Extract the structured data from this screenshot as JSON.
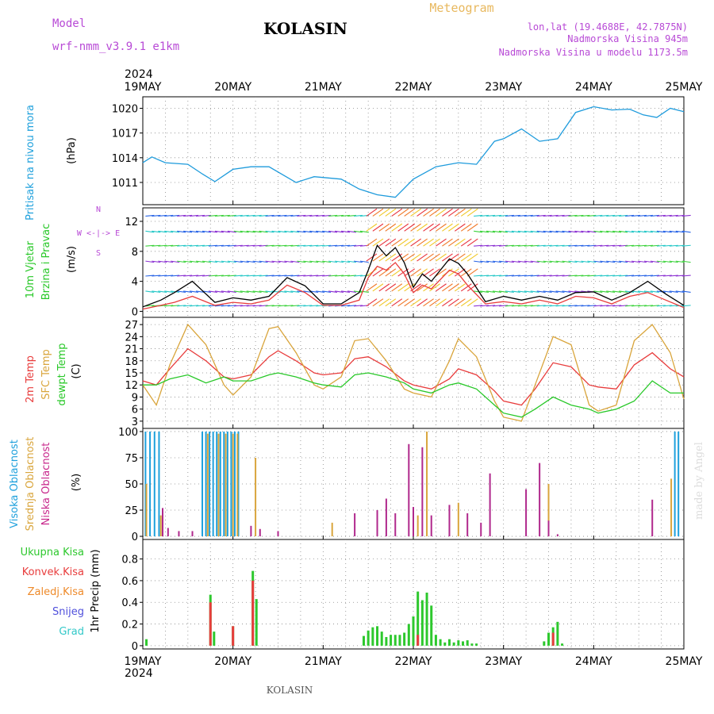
{
  "header": {
    "model_label": "Model",
    "model_name": "wrf-nmm_v3.9.1 e1km",
    "station": "KOLASIN",
    "product": "Meteogram",
    "location": "lon,lat (19.4688E, 42.7875N)",
    "elevation": "Nadmorska Visina 945m",
    "model_elevation": "Nadmorska Visina u modelu 1173.5m",
    "year": "2024",
    "footer_station": "KOLASIN",
    "credit": "made by Angel"
  },
  "colors": {
    "pressure": "#1e9bdc",
    "temp2m": "#e83c3c",
    "sfc_temp": "#d9a53c",
    "dewpt": "#28c828",
    "high_cloud": "#1ea0dc",
    "mid_cloud": "#d9a53c",
    "low_cloud": "#b0288c",
    "total_precip": "#2dc82d",
    "conv_precip": "#e83c3c",
    "grid": "#888888"
  },
  "chart_data": [
    {
      "type": "line",
      "panel": "pressure",
      "ylabel_lines": [
        "Pritisak na nivou mora",
        "(hPa)"
      ],
      "x_dates": [
        "19MAY",
        "20MAY",
        "21MAY",
        "22MAY",
        "23MAY",
        "24MAY",
        "25MAY"
      ],
      "x_unit": "days since 19MAY 00h",
      "ylim": [
        1008.3,
        1021.4
      ],
      "yticks": [
        1011,
        1014,
        1017,
        1020
      ],
      "series": [
        {
          "name": "",
          "color": "pressure",
          "x": [
            0,
            0.1,
            0.25,
            0.5,
            0.65,
            0.8,
            1.0,
            1.2,
            1.4,
            1.7,
            1.9,
            2.2,
            2.4,
            2.6,
            2.8,
            3.0,
            3.25,
            3.5,
            3.7,
            3.9,
            4.0,
            4.2,
            4.4,
            4.6,
            4.8,
            5.0,
            5.2,
            5.4,
            5.55,
            5.7,
            5.85,
            6.0
          ],
          "y": [
            1013.4,
            1014.1,
            1013.4,
            1013.2,
            1012.1,
            1011.1,
            1012.6,
            1012.9,
            1012.9,
            1011.0,
            1011.7,
            1011.4,
            1010.2,
            1009.5,
            1009.2,
            1011.4,
            1012.9,
            1013.4,
            1013.2,
            1016.0,
            1016.3,
            1017.5,
            1016.0,
            1016.3,
            1019.5,
            1020.2,
            1019.8,
            1019.9,
            1019.2,
            1018.9,
            1020.0,
            1019.6
          ]
        }
      ]
    },
    {
      "type": "line",
      "panel": "wind",
      "ylabel_lines": [
        "10m Vjetar",
        "Brzina i Pravac",
        "(m/s)"
      ],
      "compass_label": "W <-|-> E",
      "compass_north": "N",
      "compass_south": "S",
      "ylim": [
        -0.8,
        13.8
      ],
      "yticks": [
        0,
        4,
        8,
        12
      ],
      "series": [
        {
          "name": "",
          "color": "#000000",
          "x": [
            0,
            0.2,
            0.35,
            0.55,
            0.8,
            1.0,
            1.2,
            1.4,
            1.6,
            1.8,
            2.0,
            2.2,
            2.4,
            2.5,
            2.6,
            2.7,
            2.8,
            2.9,
            3.0,
            3.1,
            3.2,
            3.4,
            3.5,
            3.6,
            3.8,
            4.0,
            4.2,
            4.4,
            4.6,
            4.8,
            5.0,
            5.2,
            5.4,
            5.6,
            5.8,
            6.0
          ],
          "y": [
            0.6,
            1.5,
            2.5,
            4.0,
            1.2,
            1.8,
            1.5,
            2.0,
            4.5,
            3.4,
            1.0,
            1.0,
            2.5,
            5.5,
            8.8,
            7.4,
            8.5,
            6.5,
            3.2,
            5.0,
            4.0,
            7.0,
            6.4,
            5.0,
            1.3,
            2.0,
            1.5,
            2.0,
            1.5,
            2.5,
            2.6,
            1.5,
            2.5,
            4.0,
            2.3,
            0.8
          ]
        },
        {
          "name": "",
          "color": "#e83c3c",
          "x": [
            0,
            0.2,
            0.35,
            0.55,
            0.8,
            1.0,
            1.2,
            1.4,
            1.6,
            1.8,
            2.0,
            2.2,
            2.4,
            2.5,
            2.6,
            2.7,
            2.8,
            2.9,
            3.0,
            3.1,
            3.2,
            3.4,
            3.5,
            3.6,
            3.8,
            4.0,
            4.2,
            4.4,
            4.6,
            4.8,
            5.0,
            5.2,
            5.4,
            5.6,
            5.8,
            6.0
          ],
          "y": [
            0.3,
            0.8,
            1.2,
            2.0,
            0.8,
            1.2,
            1.0,
            1.5,
            3.5,
            2.5,
            0.8,
            0.8,
            1.5,
            4.5,
            6.0,
            5.5,
            6.5,
            5.0,
            2.5,
            3.5,
            3.0,
            5.5,
            5.0,
            3.5,
            1.0,
            1.3,
            1.0,
            1.5,
            1.0,
            2.0,
            1.8,
            1.0,
            2.0,
            2.5,
            1.5,
            0.5
          ]
        }
      ]
    },
    {
      "type": "line",
      "panel": "temperature",
      "ylabel_lines": [
        "2m Temp",
        "SFC Temp",
        "dewpt Temp",
        "(C)"
      ],
      "ylim": [
        1.2,
        28.8
      ],
      "yticks": [
        3,
        6,
        9,
        12,
        15,
        18,
        21,
        24,
        27
      ],
      "series": [
        {
          "name": "2m Temp",
          "color": "temp2m",
          "x": [
            0,
            0.15,
            0.3,
            0.5,
            0.7,
            0.9,
            1.0,
            1.2,
            1.4,
            1.5,
            1.7,
            1.9,
            2.0,
            2.2,
            2.35,
            2.5,
            2.7,
            2.9,
            3.0,
            3.2,
            3.4,
            3.5,
            3.7,
            3.9,
            4.0,
            4.2,
            4.35,
            4.55,
            4.75,
            4.95,
            5.05,
            5.25,
            5.45,
            5.65,
            5.85,
            6.0
          ],
          "y": [
            13,
            12,
            16,
            21,
            18,
            14,
            13.5,
            14.5,
            19,
            20.5,
            18,
            15,
            14.5,
            15,
            18.5,
            19,
            16.5,
            13,
            12,
            11,
            13.5,
            16,
            14.5,
            10.5,
            8,
            7,
            11,
            17.5,
            16.5,
            12,
            11.5,
            11,
            17,
            20,
            16,
            14
          ]
        },
        {
          "name": "SFC Temp",
          "color": "sfc_temp",
          "x": [
            0,
            0.15,
            0.3,
            0.5,
            0.7,
            0.9,
            1.0,
            1.2,
            1.4,
            1.5,
            1.7,
            1.9,
            2.0,
            2.2,
            2.35,
            2.5,
            2.7,
            2.9,
            3.0,
            3.2,
            3.4,
            3.5,
            3.7,
            3.9,
            4.0,
            4.2,
            4.35,
            4.55,
            4.75,
            4.95,
            5.05,
            5.25,
            5.45,
            5.65,
            5.85,
            6.0
          ],
          "y": [
            12,
            7,
            17,
            27,
            22,
            12,
            9.5,
            14,
            26,
            26.5,
            20,
            12,
            11,
            14,
            23,
            23.5,
            18,
            11,
            10,
            9,
            18,
            23.5,
            19,
            8,
            4,
            3,
            12,
            24,
            22,
            7,
            5.5,
            7,
            23,
            27,
            20,
            8.5
          ]
        },
        {
          "name": "dewpt Temp",
          "color": "dewpt",
          "x": [
            0,
            0.15,
            0.3,
            0.5,
            0.7,
            0.9,
            1.0,
            1.2,
            1.4,
            1.5,
            1.7,
            1.9,
            2.0,
            2.2,
            2.35,
            2.5,
            2.7,
            2.9,
            3.0,
            3.2,
            3.4,
            3.5,
            3.7,
            3.9,
            4.0,
            4.2,
            4.35,
            4.55,
            4.75,
            4.95,
            5.05,
            5.25,
            5.45,
            5.65,
            5.85,
            6.0
          ],
          "y": [
            12,
            12,
            13.5,
            14.5,
            12.5,
            14,
            13,
            13,
            14.5,
            15,
            14,
            12.5,
            12,
            11.5,
            14.5,
            15,
            14,
            12.5,
            11,
            10,
            12,
            12.5,
            11,
            7,
            5,
            4,
            6,
            9,
            7,
            6,
            5,
            6,
            8,
            13,
            10,
            10
          ]
        }
      ]
    },
    {
      "type": "bar",
      "panel": "cloud",
      "ylabel_lines": [
        "Visoka Oblacnost",
        "Srednja Oblacnost",
        "Niska Oblacnost",
        "(%)"
      ],
      "ylim": [
        -3,
        103
      ],
      "yticks": [
        0,
        25,
        50,
        75,
        100
      ],
      "series": [
        {
          "name": "Visoka Oblacnost",
          "color": "high_cloud",
          "x": [
            0.03,
            0.08,
            0.13,
            0.18,
            0.66,
            0.7,
            0.74,
            0.78,
            0.82,
            0.86,
            0.9,
            0.94,
            0.98,
            1.02,
            1.06,
            5.9,
            5.94
          ],
          "values": [
            100,
            100,
            100,
            100,
            100,
            100,
            100,
            100,
            100,
            100,
            100,
            100,
            100,
            100,
            100,
            100,
            100
          ]
        },
        {
          "name": "Srednja Oblacnost",
          "color": "mid_cloud",
          "x": [
            0.04,
            0.2,
            0.72,
            0.84,
            0.92,
            1.0,
            1.05,
            1.25,
            2.1,
            3.05,
            3.15,
            3.5,
            4.5,
            5.86
          ],
          "values": [
            50,
            20,
            98,
            98,
            98,
            98,
            98,
            75,
            13,
            20,
            100,
            32,
            50,
            55
          ]
        },
        {
          "name": "Niska Oblacnost",
          "color": "low_cloud",
          "x": [
            0.22,
            0.28,
            0.4,
            0.55,
            1.2,
            1.3,
            1.5,
            2.35,
            2.6,
            2.7,
            2.8,
            2.95,
            3.0,
            3.1,
            3.2,
            3.4,
            3.6,
            3.75,
            3.85,
            4.25,
            4.4,
            4.5,
            4.6,
            5.65
          ],
          "values": [
            27,
            8,
            5,
            5,
            10,
            7,
            5,
            22,
            25,
            36,
            22,
            88,
            28,
            85,
            20,
            30,
            22,
            13,
            60,
            45,
            70,
            15,
            2,
            35
          ]
        }
      ]
    },
    {
      "type": "bar",
      "panel": "precip",
      "ylabel_lines": [
        "1hr Precip (mm)"
      ],
      "legend": [
        "Ukupna Kisa",
        "Konvek.Kisa",
        "Zaledj.Kisa",
        "Snijeg",
        "Grad"
      ],
      "legend_colors": [
        "#2dc82d",
        "#e83c3c",
        "#ee8a2a",
        "#5050dc",
        "#32c8c8"
      ],
      "ylim": [
        -0.03,
        0.98
      ],
      "yticks": [
        0,
        0.2,
        0.4,
        0.6,
        0.8
      ],
      "series": [
        {
          "name": "Ukupna Kisa",
          "color": "total_precip",
          "x": [
            0.04,
            0.75,
            0.79,
            1.0,
            1.22,
            1.26,
            2.45,
            2.5,
            2.55,
            2.6,
            2.65,
            2.7,
            2.75,
            2.8,
            2.85,
            2.9,
            2.95,
            3.0,
            3.05,
            3.1,
            3.15,
            3.2,
            3.25,
            3.3,
            3.35,
            3.4,
            3.45,
            3.5,
            3.55,
            3.6,
            3.65,
            3.7,
            4.45,
            4.5,
            4.55,
            4.6,
            4.65
          ],
          "values": [
            0.06,
            0.47,
            0.13,
            0.18,
            0.69,
            0.43,
            0.09,
            0.14,
            0.17,
            0.18,
            0.13,
            0.08,
            0.1,
            0.1,
            0.1,
            0.12,
            0.2,
            0.27,
            0.5,
            0.42,
            0.49,
            0.37,
            0.1,
            0.06,
            0.03,
            0.06,
            0.03,
            0.05,
            0.04,
            0.05,
            0.02,
            0.02,
            0.04,
            0.12,
            0.17,
            0.22,
            0.02
          ]
        },
        {
          "name": "Konvek.Kisa",
          "color": "conv_precip",
          "x": [
            0.75,
            1.0,
            1.22,
            3.05,
            4.55
          ],
          "values": [
            0.4,
            0.18,
            0.6,
            0.1,
            0.12
          ]
        }
      ]
    }
  ]
}
